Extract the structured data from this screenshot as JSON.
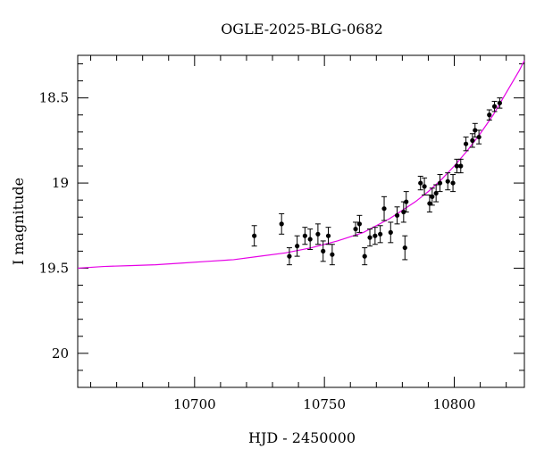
{
  "chart_data": {
    "type": "scatter",
    "title": "OGLE-2025-BLG-0682",
    "xlabel": "HJD - 2450000",
    "ylabel": "I magnitude",
    "xlim": [
      10655,
      10827
    ],
    "ylim": [
      20.2,
      18.25
    ],
    "y_inverted": true,
    "grid": false,
    "legend": "none",
    "x_ticks": [
      10700,
      10750,
      10800
    ],
    "x_tick_labels": [
      "10700",
      "10750",
      "10800"
    ],
    "y_ticks": [
      18.5,
      19,
      19.5,
      20
    ],
    "y_tick_labels": [
      "18.5",
      "19",
      "19.5",
      "20"
    ],
    "colors": {
      "points": "#000000",
      "model": "#e600e6"
    },
    "series": [
      {
        "type": "scatter",
        "error_bars": true,
        "points": [
          {
            "x": 10723.0,
            "y": 19.31,
            "err": 0.06
          },
          {
            "x": 10733.5,
            "y": 19.24,
            "err": 0.06
          },
          {
            "x": 10736.5,
            "y": 19.43,
            "err": 0.05
          },
          {
            "x": 10739.5,
            "y": 19.37,
            "err": 0.06
          },
          {
            "x": 10742.5,
            "y": 19.31,
            "err": 0.05
          },
          {
            "x": 10744.5,
            "y": 19.33,
            "err": 0.06
          },
          {
            "x": 10747.5,
            "y": 19.3,
            "err": 0.06
          },
          {
            "x": 10749.5,
            "y": 19.4,
            "err": 0.06
          },
          {
            "x": 10751.5,
            "y": 19.31,
            "err": 0.05
          },
          {
            "x": 10753.0,
            "y": 19.42,
            "err": 0.06
          },
          {
            "x": 10762.0,
            "y": 19.27,
            "err": 0.04
          },
          {
            "x": 10763.5,
            "y": 19.24,
            "err": 0.05
          },
          {
            "x": 10765.5,
            "y": 19.43,
            "err": 0.05
          },
          {
            "x": 10767.5,
            "y": 19.32,
            "err": 0.05
          },
          {
            "x": 10769.5,
            "y": 19.31,
            "err": 0.05
          },
          {
            "x": 10771.5,
            "y": 19.3,
            "err": 0.05
          },
          {
            "x": 10773.0,
            "y": 19.15,
            "err": 0.07
          },
          {
            "x": 10775.5,
            "y": 19.29,
            "err": 0.06
          },
          {
            "x": 10778.0,
            "y": 19.19,
            "err": 0.05
          },
          {
            "x": 10780.5,
            "y": 19.17,
            "err": 0.06
          },
          {
            "x": 10781.0,
            "y": 19.38,
            "err": 0.07
          },
          {
            "x": 10781.5,
            "y": 19.11,
            "err": 0.06
          },
          {
            "x": 10787.0,
            "y": 19.0,
            "err": 0.04
          },
          {
            "x": 10788.5,
            "y": 19.02,
            "err": 0.05
          },
          {
            "x": 10790.5,
            "y": 19.12,
            "err": 0.05
          },
          {
            "x": 10791.5,
            "y": 19.08,
            "err": 0.05
          },
          {
            "x": 10793.0,
            "y": 19.06,
            "err": 0.05
          },
          {
            "x": 10794.5,
            "y": 19.0,
            "err": 0.05
          },
          {
            "x": 10797.5,
            "y": 18.99,
            "err": 0.05
          },
          {
            "x": 10799.5,
            "y": 19.0,
            "err": 0.05
          },
          {
            "x": 10801.0,
            "y": 18.9,
            "err": 0.04
          },
          {
            "x": 10802.5,
            "y": 18.9,
            "err": 0.04
          },
          {
            "x": 10804.5,
            "y": 18.77,
            "err": 0.04
          },
          {
            "x": 10807.0,
            "y": 18.75,
            "err": 0.04
          },
          {
            "x": 10808.0,
            "y": 18.69,
            "err": 0.04
          },
          {
            "x": 10809.5,
            "y": 18.73,
            "err": 0.04
          },
          {
            "x": 10813.5,
            "y": 18.6,
            "err": 0.03
          },
          {
            "x": 10815.5,
            "y": 18.55,
            "err": 0.03
          },
          {
            "x": 10817.5,
            "y": 18.53,
            "err": 0.03
          }
        ]
      },
      {
        "type": "line",
        "model": true,
        "x": [
          10655,
          10665,
          10675,
          10685,
          10695,
          10705,
          10715,
          10725,
          10735,
          10745,
          10755,
          10765,
          10775,
          10780,
          10785,
          10790,
          10795,
          10800,
          10805,
          10810,
          10815,
          10820,
          10825,
          10827
        ],
        "y": [
          19.5,
          19.49,
          19.485,
          19.48,
          19.47,
          19.46,
          19.45,
          19.43,
          19.41,
          19.38,
          19.34,
          19.29,
          19.21,
          19.16,
          19.11,
          19.05,
          18.98,
          18.9,
          18.81,
          18.71,
          18.6,
          18.47,
          18.34,
          18.28
        ]
      }
    ]
  }
}
